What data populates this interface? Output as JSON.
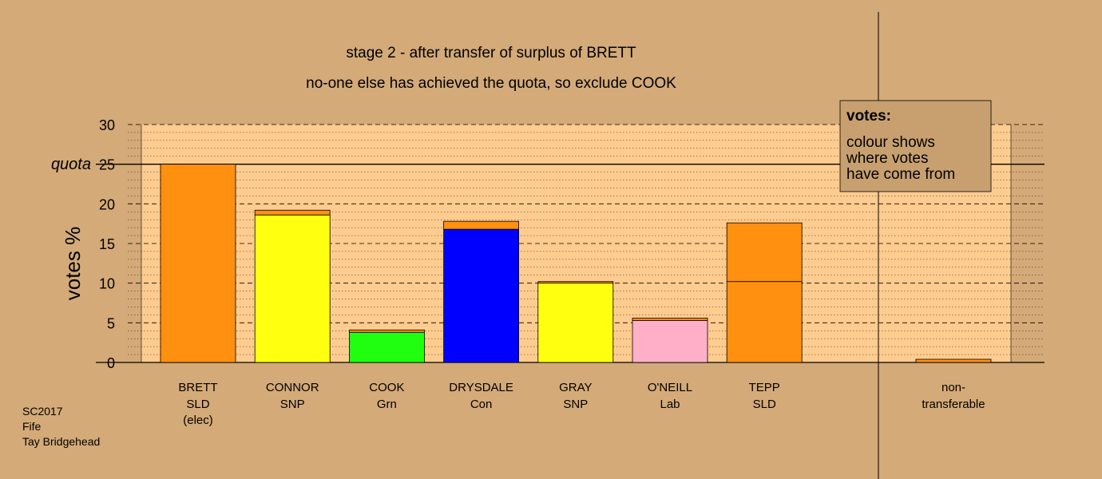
{
  "chart_data": {
    "type": "bar",
    "title": "stage 2 - after transfer of surplus of BRETT",
    "subtitle": "no-one else has achieved the quota, so exclude COOK",
    "ylabel": "votes %",
    "ylim": [
      0,
      30
    ],
    "yticks": [
      "0",
      "5",
      "10",
      "15",
      "20",
      "25",
      "30"
    ],
    "quota": 25,
    "quota_label": "quota",
    "grid": true,
    "legend_placement": "top-right",
    "candidates": [
      {
        "name": "BRETT",
        "party": "SLD",
        "note": "(elec)",
        "segments": [
          {
            "value": 25.0,
            "color": "#ff9010"
          }
        ]
      },
      {
        "name": "CONNOR",
        "party": "SNP",
        "note": "",
        "segments": [
          {
            "value": 18.6,
            "color": "#ffff10"
          },
          {
            "value": 0.6,
            "color": "#ff9010"
          }
        ]
      },
      {
        "name": "COOK",
        "party": "Grn",
        "note": "",
        "segments": [
          {
            "value": 3.8,
            "color": "#21ff10"
          },
          {
            "value": 0.3,
            "color": "#ff9010"
          }
        ]
      },
      {
        "name": "DRYSDALE",
        "party": "Con",
        "note": "",
        "segments": [
          {
            "value": 16.8,
            "color": "#0000ff"
          },
          {
            "value": 1.0,
            "color": "#ff9010"
          }
        ]
      },
      {
        "name": "GRAY",
        "party": "SNP",
        "note": "",
        "segments": [
          {
            "value": 10.0,
            "color": "#ffff10"
          },
          {
            "value": 0.2,
            "color": "#ff9010"
          }
        ]
      },
      {
        "name": "O'NEILL",
        "party": "Lab",
        "note": "",
        "segments": [
          {
            "value": 5.3,
            "color": "#ffb0c8"
          },
          {
            "value": 0.3,
            "color": "#ff9010"
          }
        ]
      },
      {
        "name": "TEPP",
        "party": "SLD",
        "note": "",
        "segments": [
          {
            "value": 10.2,
            "color": "#ff9010"
          },
          {
            "value": 7.4,
            "color": "#ff9010"
          }
        ]
      }
    ],
    "non_transferable": {
      "label_line1": "non-",
      "label_line2": "transferable",
      "value": 0.4,
      "color": "#ff9010"
    }
  },
  "legend": {
    "title": "votes:",
    "lines": [
      "colour shows",
      "where votes",
      "have come from"
    ]
  },
  "footer": {
    "lines": [
      "SC2017",
      "Fife",
      "Tay Bridgehead"
    ]
  },
  "colors": {
    "background": "#d4aa78",
    "plot_area": "#ffcc90",
    "legend_box": "#c8a070"
  }
}
